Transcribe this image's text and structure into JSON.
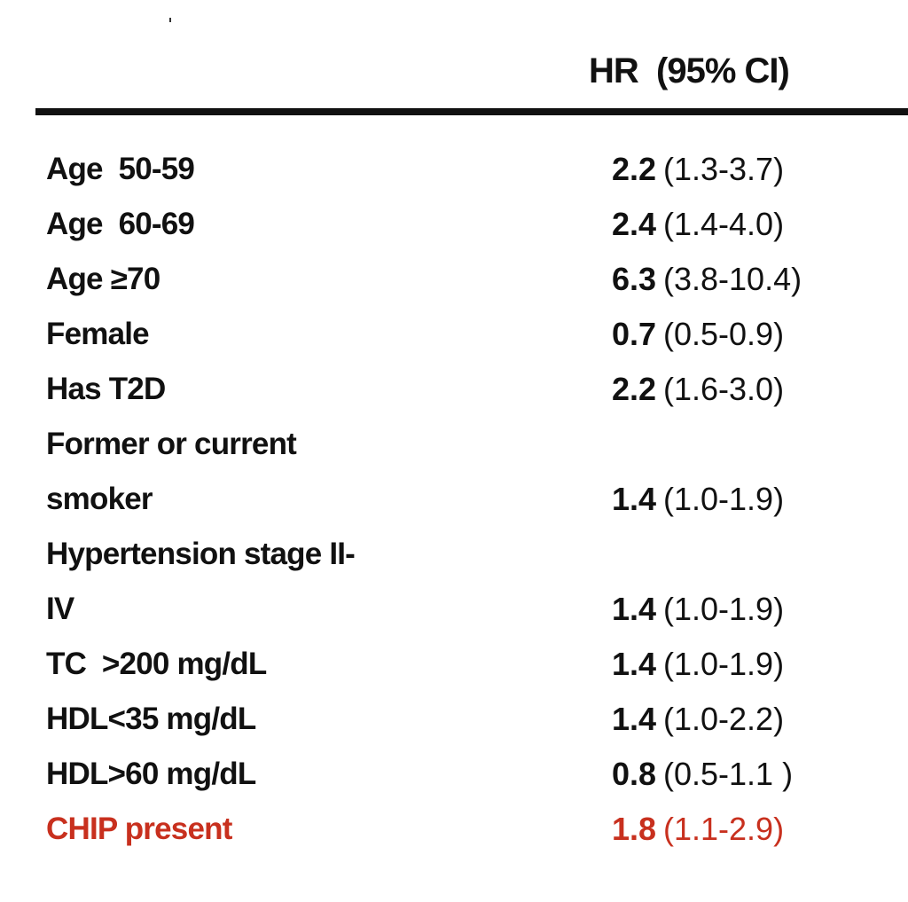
{
  "table": {
    "header": "HR  (95% CI)",
    "rows": [
      {
        "label": [
          "Age  50-59"
        ],
        "hr": "2.2",
        "ci": "(1.3-3.7)"
      },
      {
        "label": [
          "Age  60-69"
        ],
        "hr": "2.4",
        "ci": "(1.4-4.0)"
      },
      {
        "label": [
          "Age ≥70"
        ],
        "hr": "6.3",
        "ci": "(3.8-10.4)"
      },
      {
        "label": [
          "Female"
        ],
        "hr": "0.7",
        "ci": "(0.5-0.9)"
      },
      {
        "label": [
          "Has T2D"
        ],
        "hr": "2.2",
        "ci": "(1.6-3.0)"
      },
      {
        "label": [
          "Former or current",
          "smoker"
        ],
        "hr": "1.4",
        "ci": "(1.0-1.9)"
      },
      {
        "label": [
          "Hypertension stage II-",
          "IV"
        ],
        "hr": "1.4",
        "ci": "(1.0-1.9)"
      },
      {
        "label": [
          "TC  >200 mg/dL"
        ],
        "hr": "1.4",
        "ci": "(1.0-1.9)"
      },
      {
        "label": [
          "HDL<35 mg/dL"
        ],
        "hr": "1.4",
        "ci": "(1.0-2.2)"
      },
      {
        "label": [
          "HDL>60 mg/dL"
        ],
        "hr": "0.8",
        "ci": "(0.5-1.1 )"
      },
      {
        "label": [
          "CHIP present"
        ],
        "hr": "1.8",
        "ci": "(1.1-2.9)",
        "color": "#c8301e"
      }
    ]
  }
}
